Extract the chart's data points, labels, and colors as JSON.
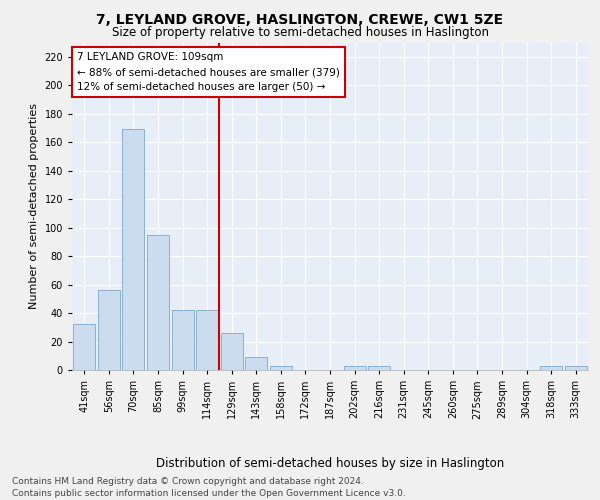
{
  "title": "7, LEYLAND GROVE, HASLINGTON, CREWE, CW1 5ZE",
  "subtitle": "Size of property relative to semi-detached houses in Haslington",
  "xlabel": "Distribution of semi-detached houses by size in Haslington",
  "ylabel": "Number of semi-detached properties",
  "categories": [
    "41sqm",
    "56sqm",
    "70sqm",
    "85sqm",
    "99sqm",
    "114sqm",
    "129sqm",
    "143sqm",
    "158sqm",
    "172sqm",
    "187sqm",
    "202sqm",
    "216sqm",
    "231sqm",
    "245sqm",
    "260sqm",
    "275sqm",
    "289sqm",
    "304sqm",
    "318sqm",
    "333sqm"
  ],
  "values": [
    32,
    56,
    169,
    95,
    42,
    42,
    26,
    9,
    3,
    0,
    0,
    3,
    3,
    0,
    0,
    0,
    0,
    0,
    0,
    3,
    3
  ],
  "bar_color": "#ccdcef",
  "bar_edge_color": "#8ab0d0",
  "vline_x_idx": 5,
  "vline_color": "#cc0000",
  "annotation_line1": "7 LEYLAND GROVE: 109sqm",
  "annotation_line2": "← 88% of semi-detached houses are smaller (379)",
  "annotation_line3": "12% of semi-detached houses are larger (50) →",
  "annotation_box_color": "#ffffff",
  "annotation_box_edge": "#cc0000",
  "ylim": [
    0,
    230
  ],
  "yticks": [
    0,
    20,
    40,
    60,
    80,
    100,
    120,
    140,
    160,
    180,
    200,
    220
  ],
  "footnote1": "Contains HM Land Registry data © Crown copyright and database right 2024.",
  "footnote2": "Contains public sector information licensed under the Open Government Licence v3.0.",
  "bg_color": "#e8eef8",
  "fig_color": "#f0f0f0",
  "grid_color": "#ffffff",
  "title_fontsize": 10,
  "subtitle_fontsize": 8.5,
  "ylabel_fontsize": 8,
  "xlabel_fontsize": 8.5,
  "tick_fontsize": 7,
  "annot_fontsize": 7.5,
  "footnote_fontsize": 6.5
}
